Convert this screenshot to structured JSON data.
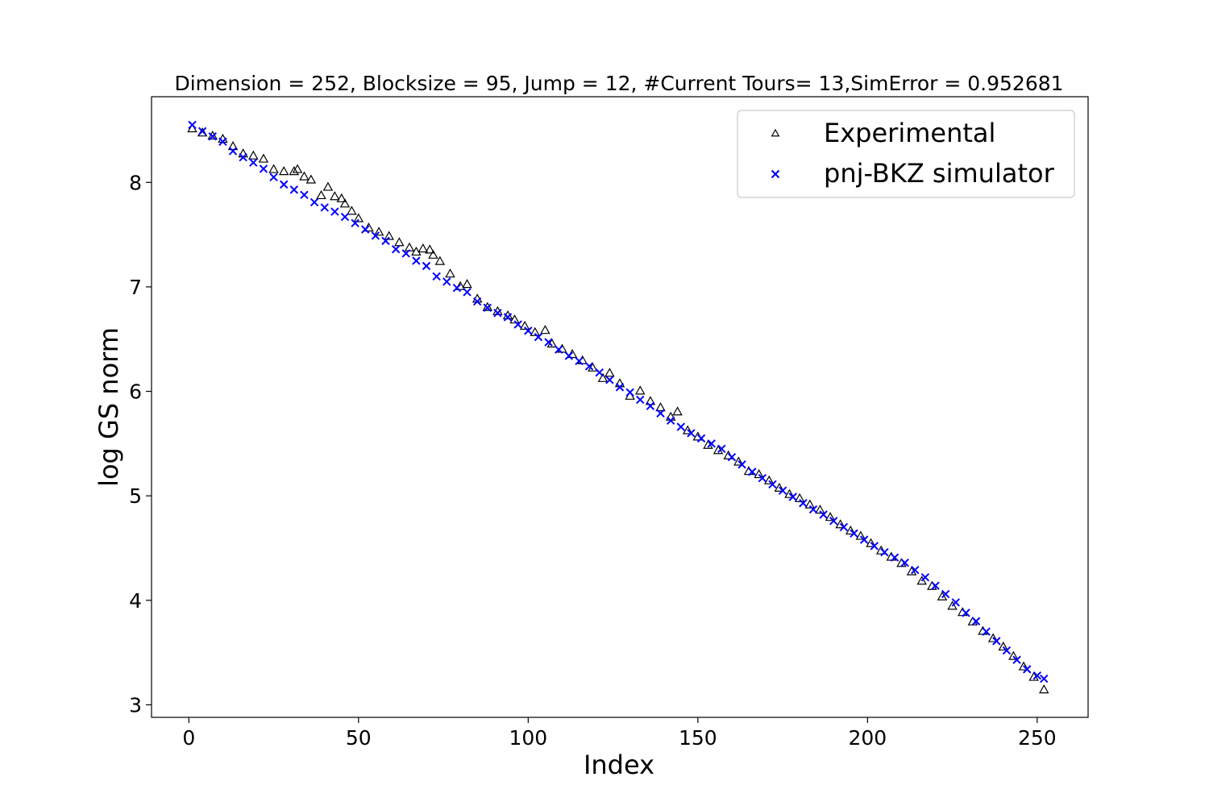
{
  "chart_data": {
    "type": "scatter",
    "title": "Dimension = 252, Blocksize = 95, Jump = 12, #Current Tours= 13,SimError = 0.952681",
    "xlabel": "Index",
    "ylabel": "log GS norm",
    "xlim": [
      -11,
      265
    ],
    "ylim": [
      2.88,
      8.82
    ],
    "xticks": [
      0,
      50,
      100,
      150,
      200,
      250
    ],
    "yticks": [
      3,
      4,
      5,
      6,
      7,
      8
    ],
    "grid": false,
    "legend_position": "top-right",
    "series": [
      {
        "name": "Experimental",
        "marker": "triangle",
        "color": "#000000",
        "x": [
          1,
          4,
          7,
          10,
          13,
          16,
          19,
          22,
          25,
          28,
          31,
          32,
          34,
          36,
          39,
          41,
          43,
          45,
          46,
          48,
          50,
          53,
          56,
          59,
          62,
          65,
          67,
          69,
          71,
          72,
          74,
          77,
          80,
          82,
          85,
          88,
          91,
          94,
          96,
          99,
          102,
          105,
          107,
          110,
          113,
          116,
          119,
          122,
          124,
          127,
          130,
          133,
          136,
          139,
          142,
          144,
          147,
          150,
          153,
          156,
          159,
          162,
          165,
          168,
          171,
          174,
          177,
          180,
          183,
          186,
          189,
          192,
          195,
          198,
          201,
          204,
          207,
          210,
          213,
          216,
          219,
          222,
          225,
          228,
          231,
          234,
          237,
          240,
          243,
          246,
          249,
          252
        ],
        "y": [
          8.51,
          8.47,
          8.44,
          8.41,
          8.34,
          8.27,
          8.25,
          8.22,
          8.12,
          8.1,
          8.1,
          8.12,
          8.05,
          8.02,
          7.87,
          7.95,
          7.86,
          7.84,
          7.79,
          7.72,
          7.65,
          7.56,
          7.52,
          7.48,
          7.42,
          7.37,
          7.33,
          7.36,
          7.35,
          7.3,
          7.24,
          7.12,
          7.0,
          7.02,
          6.88,
          6.8,
          6.76,
          6.72,
          6.68,
          6.62,
          6.56,
          6.58,
          6.45,
          6.4,
          6.35,
          6.29,
          6.22,
          6.12,
          6.17,
          6.07,
          5.95,
          6.0,
          5.9,
          5.84,
          5.75,
          5.8,
          5.62,
          5.56,
          5.48,
          5.43,
          5.38,
          5.32,
          5.23,
          5.2,
          5.14,
          5.07,
          5.01,
          4.97,
          4.91,
          4.86,
          4.79,
          4.72,
          4.66,
          4.61,
          4.54,
          4.47,
          4.41,
          4.35,
          4.27,
          4.18,
          4.13,
          4.03,
          3.94,
          3.88,
          3.79,
          3.7,
          3.63,
          3.55,
          3.46,
          3.36,
          3.26,
          3.14
        ]
      },
      {
        "name": "pnj-BKZ simulator",
        "marker": "x",
        "color": "#0000ff",
        "x": [
          1,
          4,
          7,
          10,
          13,
          16,
          19,
          22,
          25,
          28,
          31,
          34,
          37,
          40,
          43,
          46,
          49,
          52,
          55,
          58,
          61,
          64,
          67,
          70,
          73,
          76,
          79,
          82,
          85,
          88,
          91,
          94,
          97,
          100,
          103,
          106,
          109,
          112,
          115,
          118,
          121,
          124,
          127,
          130,
          133,
          136,
          139,
          142,
          145,
          148,
          151,
          154,
          157,
          160,
          163,
          166,
          169,
          172,
          175,
          178,
          181,
          184,
          187,
          190,
          193,
          196,
          199,
          202,
          205,
          208,
          211,
          214,
          217,
          220,
          223,
          226,
          229,
          232,
          235,
          238,
          241,
          244,
          247,
          250,
          252
        ],
        "y": [
          8.55,
          8.49,
          8.44,
          8.39,
          8.3,
          8.24,
          8.19,
          8.13,
          8.05,
          7.98,
          7.93,
          7.88,
          7.81,
          7.76,
          7.72,
          7.67,
          7.61,
          7.55,
          7.49,
          7.44,
          7.36,
          7.32,
          7.25,
          7.2,
          7.1,
          7.05,
          6.99,
          6.95,
          6.86,
          6.8,
          6.75,
          6.71,
          6.64,
          6.58,
          6.52,
          6.47,
          6.4,
          6.34,
          6.29,
          6.24,
          6.18,
          6.11,
          6.04,
          5.99,
          5.92,
          5.86,
          5.79,
          5.72,
          5.66,
          5.6,
          5.55,
          5.5,
          5.45,
          5.37,
          5.3,
          5.23,
          5.17,
          5.11,
          5.05,
          4.99,
          4.93,
          4.87,
          4.82,
          4.76,
          4.7,
          4.64,
          4.58,
          4.52,
          4.46,
          4.41,
          4.36,
          4.29,
          4.22,
          4.14,
          4.06,
          3.98,
          3.88,
          3.8,
          3.7,
          3.61,
          3.52,
          3.43,
          3.34,
          3.28,
          3.25
        ]
      }
    ]
  }
}
